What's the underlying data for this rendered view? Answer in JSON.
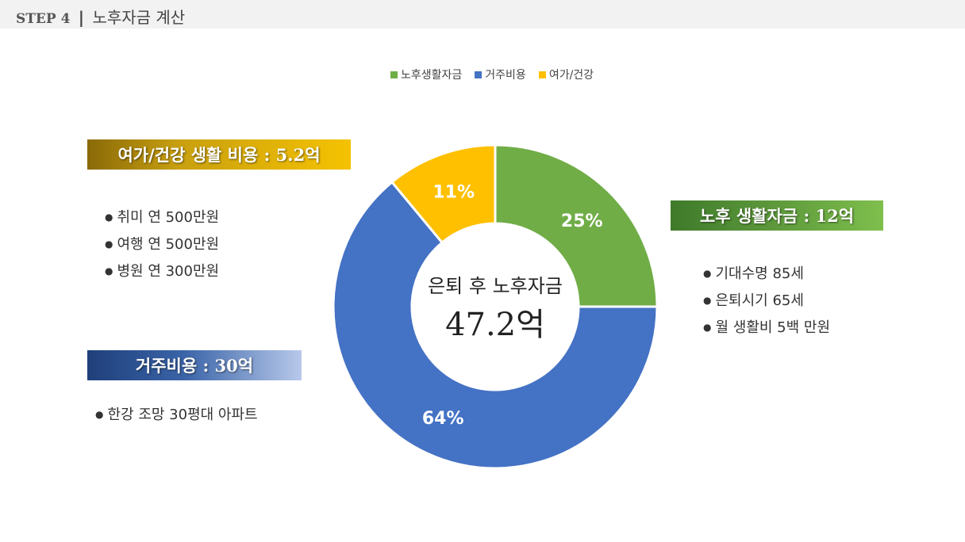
{
  "header": {
    "step": "STEP 4",
    "separator": "|",
    "title": "노후자금 계산"
  },
  "chart_data": {
    "type": "pie",
    "style": "donut",
    "categories": [
      "노후생활자금",
      "거주비용",
      "여가/건강"
    ],
    "values": [
      25,
      64,
      11
    ],
    "value_labels": [
      "25%",
      "64%",
      "11%"
    ],
    "colors": [
      "#70ad47",
      "#4472c4",
      "#ffc000"
    ],
    "legend_position": "top"
  },
  "center": {
    "subtitle": "은퇴 후 노후자금",
    "total": "47.2억"
  },
  "sections": {
    "leisure": {
      "heading": "여가/건강 생활 비용 : 5.2억",
      "items": [
        "취미 연 500만원",
        "여행 연 500만원",
        "병원 연 300만원"
      ]
    },
    "living": {
      "heading": "노후 생활자금 : 12억",
      "items": [
        "기대수명 85세",
        "은퇴시기 65세",
        "월 생활비 5백 만원"
      ]
    },
    "housing": {
      "heading": "거주비용 : 30억",
      "items": [
        "한강 조망 30평대 아파트"
      ]
    }
  }
}
